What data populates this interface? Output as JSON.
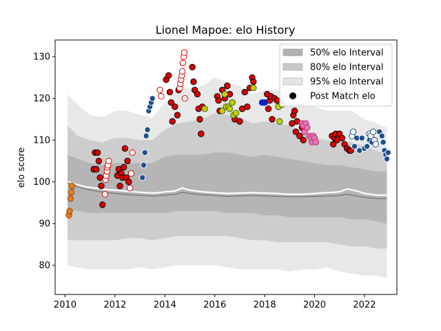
{
  "chart_data": {
    "type": "scatter",
    "title": "Lionel Mapoe: elo History",
    "xlabel": "",
    "ylabel": "elo score",
    "xlim": [
      2009.6,
      2023.3
    ],
    "ylim": [
      73,
      134
    ],
    "x_ticks": [
      2010,
      2012,
      2014,
      2016,
      2018,
      2020,
      2022
    ],
    "y_ticks": [
      80,
      90,
      100,
      110,
      120,
      130
    ],
    "grid": false,
    "legend_position": "top-right",
    "legend": [
      {
        "label": "50% elo Interval",
        "kind": "band",
        "color": "#b0b0b0"
      },
      {
        "label": "80% elo Interval",
        "kind": "band",
        "color": "#c8c8c8"
      },
      {
        "label": "95% elo Interval",
        "kind": "band",
        "color": "#e4e4e4"
      },
      {
        "label": "Post Match elo",
        "kind": "marker",
        "color": "#000000"
      }
    ],
    "bands": {
      "x": [
        2010.1,
        2010.5,
        2011,
        2011.5,
        2012,
        2012.5,
        2013,
        2013.5,
        2014,
        2014.5,
        2015,
        2015.5,
        2016,
        2016.5,
        2017,
        2017.5,
        2018,
        2018.5,
        2019,
        2019.5,
        2020,
        2020.5,
        2021,
        2021.5,
        2022,
        2022.5,
        2022.9
      ],
      "i95_hi": [
        121,
        118.5,
        116,
        115.5,
        117,
        117,
        116,
        115.5,
        119,
        122,
        122.5,
        123,
        125,
        124,
        123,
        121,
        122,
        122,
        121,
        119,
        118,
        117,
        117,
        117,
        115,
        114,
        113
      ],
      "i95_lo": [
        80,
        79.5,
        79,
        79,
        79,
        79,
        79.5,
        79,
        79.5,
        80,
        80,
        80,
        80,
        79.5,
        79,
        79,
        79,
        79,
        78.5,
        79,
        79,
        79.5,
        78.5,
        78,
        77.5,
        77.5,
        77
      ],
      "i80_hi": [
        113.5,
        111,
        110,
        109.5,
        110.5,
        110.5,
        110,
        110,
        112.5,
        114,
        114.5,
        115,
        116.5,
        116,
        115.5,
        114,
        114.5,
        114,
        113.5,
        111.5,
        110.5,
        110,
        109.5,
        109.5,
        108.5,
        107.5,
        106.5
      ],
      "i80_lo": [
        86,
        86,
        86,
        86,
        86,
        86.5,
        86.5,
        86,
        86.5,
        87,
        87,
        87,
        87,
        87,
        86.5,
        86,
        86,
        85.5,
        85.5,
        85.5,
        85.5,
        85.5,
        85,
        84.5,
        84.5,
        84,
        84
      ],
      "i50_hi": [
        106.5,
        105.5,
        104.5,
        104,
        104.5,
        104.5,
        104.5,
        104.5,
        106,
        106.5,
        106.5,
        106.5,
        107,
        107,
        106.5,
        106,
        106.5,
        106,
        105.5,
        105,
        104.5,
        104,
        104,
        103.5,
        103,
        102.5,
        102.5
      ],
      "i50_lo": [
        93.5,
        93,
        92.5,
        92.5,
        92.5,
        92.5,
        92.5,
        92.5,
        92.5,
        93,
        93,
        93,
        93,
        92.5,
        92.5,
        92.5,
        92,
        92,
        91.5,
        91.5,
        91.5,
        91.5,
        91.5,
        91,
        91,
        90.5,
        90
      ]
    },
    "series": [
      {
        "kind": "line",
        "color": "#ffffff",
        "width": 2.2,
        "x": [
          2010.1,
          2010.4,
          2010.8,
          2011.2,
          2011.6,
          2012.0,
          2012.4,
          2012.8,
          2013.2,
          2013.6,
          2014.0,
          2014.4,
          2014.7,
          2015.0,
          2015.5,
          2016.0,
          2016.5,
          2017.0,
          2017.5,
          2018.0,
          2018.5,
          2019.0,
          2019.5,
          2020.0,
          2020.5,
          2021.0,
          2021.3,
          2021.7,
          2022.0,
          2022.5,
          2022.9
        ],
        "y": [
          100,
          99.5,
          98.8,
          98.5,
          98.2,
          98.0,
          97.8,
          97.6,
          97.4,
          97.3,
          97.6,
          97.8,
          98.5,
          98.0,
          97.6,
          97.4,
          97.2,
          97.3,
          97.4,
          97.3,
          97.2,
          97.0,
          97.0,
          97.2,
          97.4,
          97.6,
          98.3,
          97.8,
          97.2,
          96.8,
          96.8
        ]
      },
      {
        "kind": "line",
        "color": "#808080",
        "width": 1.6,
        "x": [
          2010.1,
          2010.4,
          2010.8,
          2011.2,
          2011.6,
          2012.0,
          2012.4,
          2012.8,
          2013.2,
          2013.6,
          2014.0,
          2014.4,
          2014.7,
          2015.0,
          2015.5,
          2016.0,
          2016.5,
          2017.0,
          2017.5,
          2018.0,
          2018.5,
          2019.0,
          2019.5,
          2020.0,
          2020.5,
          2021.0,
          2021.3,
          2021.7,
          2022.0,
          2022.5,
          2022.9
        ],
        "y": [
          99.8,
          99.0,
          98.3,
          97.8,
          97.5,
          97.2,
          97.0,
          96.8,
          96.7,
          96.6,
          96.8,
          97.0,
          97.5,
          97.2,
          96.9,
          96.7,
          96.5,
          96.6,
          96.7,
          96.6,
          96.5,
          96.4,
          96.4,
          96.5,
          96.6,
          96.7,
          97.0,
          96.6,
          96.3,
          96.0,
          96.0
        ]
      },
      {
        "name": "",
        "fill": "#e67e22",
        "edge": "#8a4a10",
        "x": [
          2010.15,
          2010.18,
          2010.22,
          2010.25,
          2010.28
        ],
        "y": [
          92,
          93,
          96,
          97.5,
          99
        ]
      },
      {
        "name": "",
        "fill": "#dd0000",
        "edge": "#000000",
        "x": [
          2011.15,
          2011.2,
          2011.25,
          2011.3,
          2011.35,
          2011.4,
          2011.45,
          2011.5,
          2012.1,
          2012.15,
          2012.2,
          2012.25,
          2012.3,
          2012.35,
          2012.4,
          2012.45,
          2012.5,
          2012.55,
          2014.05,
          2014.15,
          2014.2,
          2014.25,
          2014.3,
          2014.4,
          2014.5,
          2014.55,
          2015.1,
          2015.15,
          2015.2,
          2015.3,
          2015.35,
          2015.4,
          2015.45,
          2015.5,
          2016.1,
          2016.15,
          2016.2,
          2016.3,
          2016.4,
          2016.5,
          2016.6,
          2016.7,
          2016.8,
          2017.0,
          2017.1,
          2017.2,
          2017.3,
          2017.4,
          2017.5,
          2017.55,
          2018.1,
          2018.15,
          2018.2,
          2018.25,
          2018.3,
          2018.4,
          2018.5,
          2018.55,
          2019.1,
          2019.15,
          2019.2,
          2019.25,
          2019.3,
          2019.4,
          2019.5,
          2019.55,
          2020.7,
          2020.75,
          2020.8,
          2020.85,
          2020.9,
          2021.0,
          2021.1,
          2021.2,
          2021.3,
          2021.4,
          2021.45
        ],
        "y": [
          103,
          107,
          103,
          107,
          105,
          101,
          99,
          94.5,
          101.5,
          103,
          99,
          102,
          101,
          103.5,
          108,
          101,
          105,
          100,
          124.5,
          125.5,
          121.5,
          119,
          114.5,
          118,
          116,
          122,
          127.5,
          124,
          122,
          121,
          117.5,
          115,
          111.5,
          118,
          120.5,
          119.5,
          117,
          122,
          120,
          123,
          121,
          119,
          115,
          114.5,
          117.5,
          121.5,
          118,
          122.5,
          125,
          124,
          121,
          117.5,
          119.5,
          120.5,
          115,
          120,
          119.5,
          118,
          114,
          116,
          117,
          112,
          114.5,
          111,
          113,
          110,
          111,
          109,
          110.5,
          111.5,
          110,
          111.5,
          110.5,
          109,
          108,
          107.5,
          107.5
        ]
      },
      {
        "name": "",
        "fill": "#ffffff",
        "edge": "#dd0000",
        "x": [
          2011.6,
          2011.62,
          2011.65,
          2011.68,
          2011.7,
          2011.72,
          2011.75,
          2012.6,
          2012.65,
          2012.7,
          2013.8,
          2013.85,
          2014.6,
          2014.62,
          2014.65,
          2014.68,
          2014.7,
          2014.72,
          2014.75,
          2014.78,
          2014.8
        ],
        "y": [
          97,
          100.5,
          101.5,
          102.5,
          103.5,
          104,
          105,
          98.5,
          102,
          107,
          122,
          120.5,
          122.5,
          123.5,
          124.5,
          125.5,
          126.5,
          128.5,
          130,
          131,
          120
        ]
      },
      {
        "name": "",
        "fill": "#1f4e8c",
        "edge": "#ffffff",
        "x": [
          2013.1,
          2013.15,
          2013.2,
          2013.25,
          2013.3,
          2013.35,
          2013.4,
          2013.45,
          2013.5,
          2021.6,
          2021.7,
          2021.8,
          2021.9,
          2022.0,
          2022.1,
          2022.2,
          2022.3,
          2022.6,
          2022.7,
          2022.75,
          2022.8,
          2022.85,
          2022.9,
          2022.95
        ],
        "y": [
          101,
          104,
          107,
          111,
          112.5,
          117,
          118,
          119,
          120,
          108.5,
          110.5,
          107.5,
          110.5,
          108,
          108.5,
          110,
          109.5,
          112,
          111,
          109.5,
          107.5,
          106.5,
          105.5,
          107
        ]
      },
      {
        "name": "",
        "fill": "#ffffff",
        "edge": "#1f4e8c",
        "x": [
          2021.5,
          2021.55,
          2022.2,
          2022.25,
          2022.35,
          2022.4,
          2022.45
        ],
        "y": [
          111,
          112,
          111.5,
          111,
          112,
          110,
          109
        ]
      },
      {
        "name": "",
        "fill": "#cccc00",
        "edge": "#2b6b2b",
        "x": [
          2015.6,
          2016.3,
          2016.4,
          2016.45,
          2016.55,
          2016.6,
          2016.7,
          2016.75,
          2016.85,
          2017.55,
          2018.55,
          2018.6,
          2018.7
        ],
        "y": [
          117.5,
          117,
          121,
          118,
          118,
          117.5,
          119,
          116,
          116.5,
          122.5,
          118,
          114.5,
          118.5
        ]
      },
      {
        "name": "",
        "fill": "#0020c0",
        "edge": "#0020c0",
        "x": [
          2017.9,
          2018.0
        ],
        "y": [
          119,
          119
        ]
      },
      {
        "name": "",
        "fill": "#e07ab0",
        "edge": "#c03080",
        "x": [
          2019.5,
          2019.55,
          2019.6,
          2019.65,
          2019.7,
          2019.8,
          2019.85,
          2019.9,
          2019.95,
          2020.0,
          2020.05
        ],
        "y": [
          114,
          113.5,
          112,
          114,
          113,
          111,
          110.5,
          109.5,
          111,
          110.5,
          109.5
        ]
      }
    ]
  }
}
